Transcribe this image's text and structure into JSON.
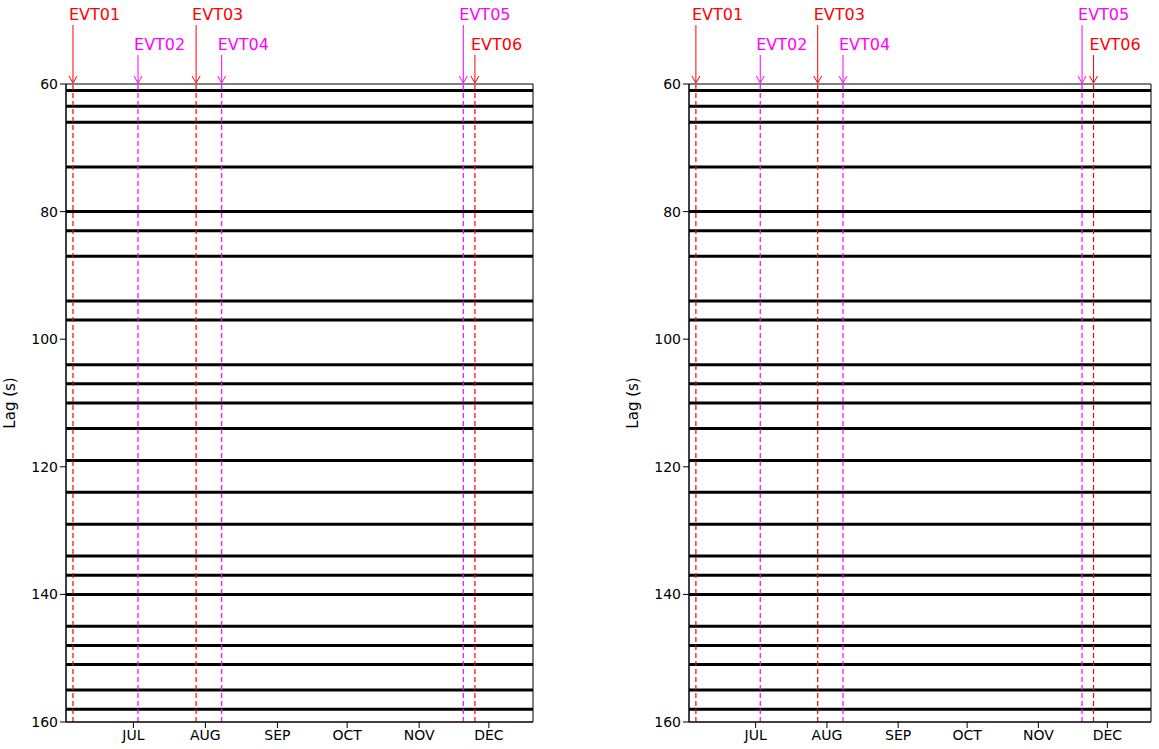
{
  "chart_data": [
    {
      "type": "seismogram",
      "ylabel": "Lag (s)",
      "ylim": [
        60,
        160
      ],
      "yticks": [
        60,
        80,
        100,
        120,
        140,
        160
      ],
      "xlim": [
        153,
        354
      ],
      "xticks": [
        {
          "value": 182,
          "label": "JUL"
        },
        {
          "value": 213,
          "label": "AUG"
        },
        {
          "value": 244,
          "label": "SEP"
        },
        {
          "value": 274,
          "label": "OCT"
        },
        {
          "value": 305,
          "label": "NOV"
        },
        {
          "value": 335,
          "label": "DEC"
        }
      ],
      "events": [
        {
          "label": "EVT01",
          "x": 156,
          "color": "#ff0000"
        },
        {
          "label": "EVT02",
          "x": 184,
          "color": "#ff00ff"
        },
        {
          "label": "EVT03",
          "x": 209,
          "color": "#ff0000"
        },
        {
          "label": "EVT04",
          "x": 220,
          "color": "#ff00ff"
        },
        {
          "label": "EVT05",
          "x": 324,
          "color": "#ff00ff"
        },
        {
          "label": "EVT06",
          "x": 329,
          "color": "#ff0000"
        }
      ],
      "phase_lags": [
        61,
        63.5,
        66,
        73,
        80,
        83,
        87,
        94,
        97,
        104,
        107,
        110,
        114,
        119,
        124,
        129,
        134,
        137,
        140,
        145,
        148,
        151,
        155,
        158
      ],
      "color": "#000000"
    },
    {
      "type": "seismogram",
      "ylabel": "Lag (s)",
      "ylim": [
        60,
        160
      ],
      "yticks": [
        60,
        80,
        100,
        120,
        140,
        160
      ],
      "xlim": [
        153,
        354
      ],
      "xticks": [
        {
          "value": 182,
          "label": "JUL"
        },
        {
          "value": 213,
          "label": "AUG"
        },
        {
          "value": 244,
          "label": "SEP"
        },
        {
          "value": 274,
          "label": "OCT"
        },
        {
          "value": 305,
          "label": "NOV"
        },
        {
          "value": 335,
          "label": "DEC"
        }
      ],
      "events": [
        {
          "label": "EVT01",
          "x": 156,
          "color": "#ff0000"
        },
        {
          "label": "EVT02",
          "x": 184,
          "color": "#ff00ff"
        },
        {
          "label": "EVT03",
          "x": 209,
          "color": "#ff0000"
        },
        {
          "label": "EVT04",
          "x": 220,
          "color": "#ff00ff"
        },
        {
          "label": "EVT05",
          "x": 324,
          "color": "#ff00ff"
        },
        {
          "label": "EVT06",
          "x": 329,
          "color": "#ff0000"
        }
      ],
      "phase_lags": [
        61,
        63.5,
        66,
        73,
        80,
        83,
        87,
        94,
        97,
        104,
        107,
        110,
        114,
        119,
        124,
        129,
        134,
        137,
        140,
        145,
        148,
        151,
        155,
        158
      ],
      "color": "#000000"
    }
  ]
}
